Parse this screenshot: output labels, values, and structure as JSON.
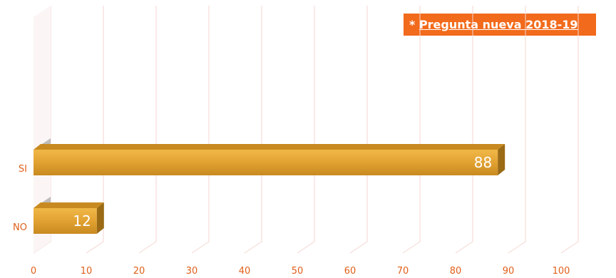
{
  "note": {
    "prefix": "* ",
    "text": "Pregunta nueva 2018-19"
  },
  "colors": {
    "bar_front": "#e0a030",
    "bar_top": "#c88a20",
    "bar_side": "#9a6a14",
    "grid": "#f4d6d2",
    "badge": "#f26a1b",
    "labels": "#e0601a"
  },
  "chart_data": {
    "type": "bar",
    "orientation": "horizontal",
    "categories": [
      "SI",
      "NO"
    ],
    "values": [
      88,
      12
    ],
    "xlim": [
      0,
      100
    ],
    "xticks": [
      0,
      10,
      20,
      30,
      40,
      50,
      60,
      70,
      80,
      90,
      100
    ],
    "grid": true,
    "legend": "none"
  }
}
